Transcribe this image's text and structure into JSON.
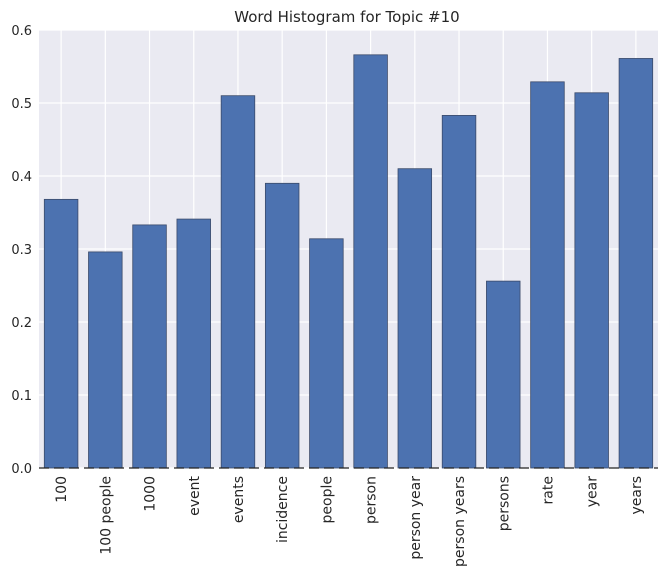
{
  "chart_data": {
    "type": "bar",
    "title": "Word Histogram for Topic #10",
    "xlabel": "",
    "ylabel": "",
    "categories": [
      "100",
      "100 people",
      "1000",
      "event",
      "events",
      "incidence",
      "people",
      "person",
      "person year",
      "person years",
      "persons",
      "rate",
      "year",
      "years"
    ],
    "values": [
      0.368,
      0.296,
      0.333,
      0.341,
      0.51,
      0.39,
      0.314,
      0.566,
      0.41,
      0.483,
      0.256,
      0.529,
      0.514,
      0.561
    ],
    "ylim": [
      0,
      0.6
    ],
    "yticks": [
      "0.0",
      "0.1",
      "0.2",
      "0.3",
      "0.4",
      "0.5",
      "0.6"
    ],
    "grid": true,
    "bar_color": "#4c72b0",
    "background_color": "#eaeaf2"
  }
}
